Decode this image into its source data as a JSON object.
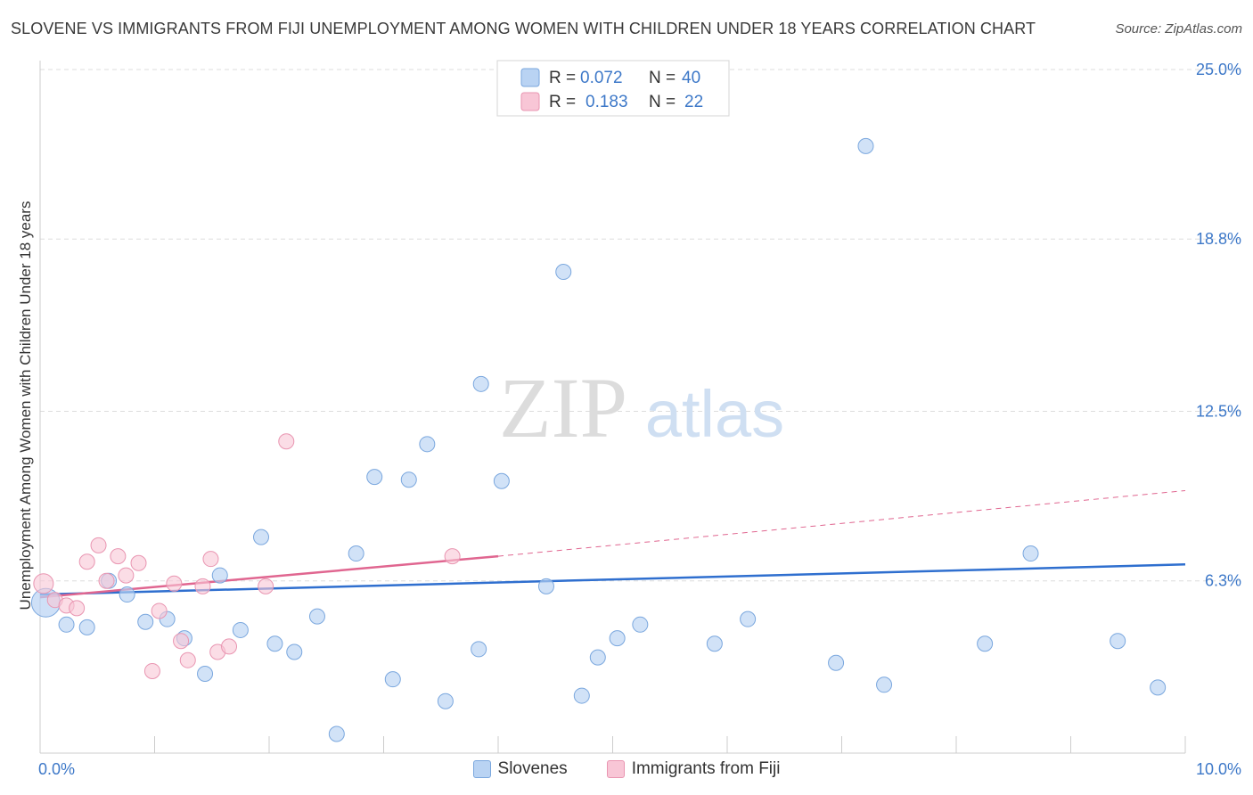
{
  "header": {
    "title": "SLOVENE VS IMMIGRANTS FROM FIJI UNEMPLOYMENT AMONG WOMEN WITH CHILDREN UNDER 18 YEARS CORRELATION CHART",
    "source": "Source: ZipAtlas.com"
  },
  "watermark": {
    "zip": "ZIP",
    "atlas": "atlas"
  },
  "colors": {
    "blue_fill": "#b9d3f3",
    "blue_stroke": "#7aa7de",
    "blue_line": "#2f6fcf",
    "pink_fill": "#f8c6d6",
    "pink_stroke": "#e995b1",
    "pink_line": "#e06690",
    "axis_label": "#3d78c8",
    "grid": "#dddddd"
  },
  "legend_top": [
    {
      "r_label": "R =",
      "r_value": "0.072",
      "n_label": "N =",
      "n_value": "40"
    },
    {
      "r_label": "R =",
      "r_value": "0.183",
      "n_label": "N =",
      "n_value": "22"
    }
  ],
  "chart_data": {
    "type": "scatter",
    "title": "SLOVENE VS IMMIGRANTS FROM FIJI UNEMPLOYMENT AMONG WOMEN WITH CHILDREN UNDER 18 YEARS CORRELATION CHART",
    "xlabel": "",
    "ylabel": "Unemployment Among Women with Children Under 18 years",
    "xlim": [
      0,
      10
    ],
    "ylim": [
      0,
      25.0
    ],
    "x_tick_labels": [
      "0.0%",
      "10.0%"
    ],
    "y_ticks": [
      6.3,
      12.5,
      18.8,
      25.0
    ],
    "y_tick_labels": [
      "6.3%",
      "12.5%",
      "18.8%",
      "25.0%"
    ],
    "grid": "horizontal dashed",
    "legend": "top-center",
    "series": [
      {
        "name": "Slovenes",
        "color": "#b9d3f3",
        "r": 0.072,
        "n": 40,
        "trend": {
          "x": [
            0,
            10
          ],
          "y": [
            5.8,
            6.9
          ]
        },
        "points": [
          {
            "x": 0.05,
            "y": 5.5
          },
          {
            "x": 0.23,
            "y": 4.7
          },
          {
            "x": 0.41,
            "y": 4.6
          },
          {
            "x": 0.6,
            "y": 6.3
          },
          {
            "x": 0.76,
            "y": 5.8
          },
          {
            "x": 0.92,
            "y": 4.8
          },
          {
            "x": 1.11,
            "y": 4.9
          },
          {
            "x": 1.26,
            "y": 4.2
          },
          {
            "x": 1.44,
            "y": 2.9
          },
          {
            "x": 1.57,
            "y": 6.5
          },
          {
            "x": 1.75,
            "y": 4.5
          },
          {
            "x": 1.93,
            "y": 7.9
          },
          {
            "x": 2.05,
            "y": 4.0
          },
          {
            "x": 2.22,
            "y": 3.7
          },
          {
            "x": 2.42,
            "y": 5.0
          },
          {
            "x": 2.59,
            "y": 0.7
          },
          {
            "x": 2.76,
            "y": 7.3
          },
          {
            "x": 2.92,
            "y": 10.1
          },
          {
            "x": 3.08,
            "y": 2.7
          },
          {
            "x": 3.22,
            "y": 10.0
          },
          {
            "x": 3.38,
            "y": 11.3
          },
          {
            "x": 3.54,
            "y": 1.9
          },
          {
            "x": 3.83,
            "y": 3.8
          },
          {
            "x": 3.85,
            "y": 13.5
          },
          {
            "x": 4.03,
            "y": 9.95
          },
          {
            "x": 4.42,
            "y": 6.1
          },
          {
            "x": 4.57,
            "y": 17.6
          },
          {
            "x": 4.73,
            "y": 2.1
          },
          {
            "x": 4.87,
            "y": 3.5
          },
          {
            "x": 5.04,
            "y": 4.2
          },
          {
            "x": 5.24,
            "y": 4.7
          },
          {
            "x": 5.89,
            "y": 4.0
          },
          {
            "x": 6.18,
            "y": 4.9
          },
          {
            "x": 6.95,
            "y": 3.3
          },
          {
            "x": 7.21,
            "y": 22.2
          },
          {
            "x": 7.37,
            "y": 2.5
          },
          {
            "x": 8.25,
            "y": 4.0
          },
          {
            "x": 8.65,
            "y": 7.3
          },
          {
            "x": 9.41,
            "y": 4.1
          },
          {
            "x": 9.76,
            "y": 2.4
          }
        ]
      },
      {
        "name": "Immigrants from Fiji",
        "color": "#f8c6d6",
        "r": 0.183,
        "n": 22,
        "trend": {
          "x": [
            0,
            4.0
          ],
          "y": [
            5.7,
            7.2
          ]
        },
        "trend_ext": {
          "x": [
            4.0,
            10
          ],
          "y": [
            7.2,
            9.6
          ]
        },
        "points": [
          {
            "x": 0.03,
            "y": 6.2
          },
          {
            "x": 0.13,
            "y": 5.6
          },
          {
            "x": 0.23,
            "y": 5.4
          },
          {
            "x": 0.32,
            "y": 5.3
          },
          {
            "x": 0.41,
            "y": 7.0
          },
          {
            "x": 0.51,
            "y": 7.6
          },
          {
            "x": 0.58,
            "y": 6.3
          },
          {
            "x": 0.68,
            "y": 7.2
          },
          {
            "x": 0.75,
            "y": 6.5
          },
          {
            "x": 0.86,
            "y": 6.95
          },
          {
            "x": 0.98,
            "y": 3.0
          },
          {
            "x": 1.04,
            "y": 5.2
          },
          {
            "x": 1.17,
            "y": 6.2
          },
          {
            "x": 1.23,
            "y": 4.1
          },
          {
            "x": 1.29,
            "y": 3.4
          },
          {
            "x": 1.42,
            "y": 6.1
          },
          {
            "x": 1.49,
            "y": 7.1
          },
          {
            "x": 1.55,
            "y": 3.7
          },
          {
            "x": 1.65,
            "y": 3.9
          },
          {
            "x": 1.97,
            "y": 6.1
          },
          {
            "x": 2.15,
            "y": 11.4
          },
          {
            "x": 3.6,
            "y": 7.2
          }
        ]
      }
    ]
  }
}
